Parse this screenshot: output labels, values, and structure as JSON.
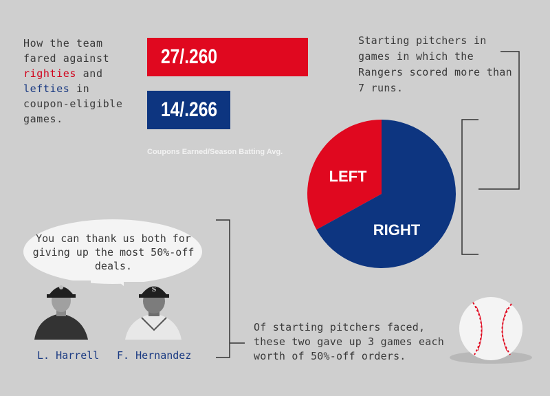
{
  "intro": {
    "line1": "How the team",
    "line2": "fared against",
    "righties": "righties",
    "and": " and",
    "lefties": "lefties",
    "in": " in",
    "line5": "coupon-eligible",
    "line6": "games."
  },
  "bar_caption": "Coupons Earned/Season Batting Avg.",
  "pie_description": "Starting pitchers in games in which the Rangers scored more than 7 runs.",
  "speech_bubble": "You can thank us both for giving up the most 50%-off deals.",
  "players": [
    {
      "name": "L. Harrell"
    },
    {
      "name": "F. Hernandez"
    }
  ],
  "bottom_description": "Of starting pitchers faced, these two gave up 3 games each worth of 50%-off orders.",
  "colors": {
    "red": "#e0081f",
    "blue": "#0d3580"
  },
  "icons": [
    "baseball-icon",
    "player-photo-harrell",
    "player-photo-hernandez"
  ],
  "chart_data": [
    {
      "type": "bar",
      "categories": [
        "righties",
        "lefties"
      ],
      "values": [
        27,
        14
      ],
      "bar_labels": [
        "27/.260",
        "14/.266"
      ],
      "batting_avg": [
        0.26,
        0.266
      ],
      "xlabel": "Coupons Earned/Season Batting Avg."
    },
    {
      "type": "pie",
      "categories": [
        "LEFT",
        "RIGHT"
      ],
      "values": [
        33,
        67
      ]
    }
  ]
}
